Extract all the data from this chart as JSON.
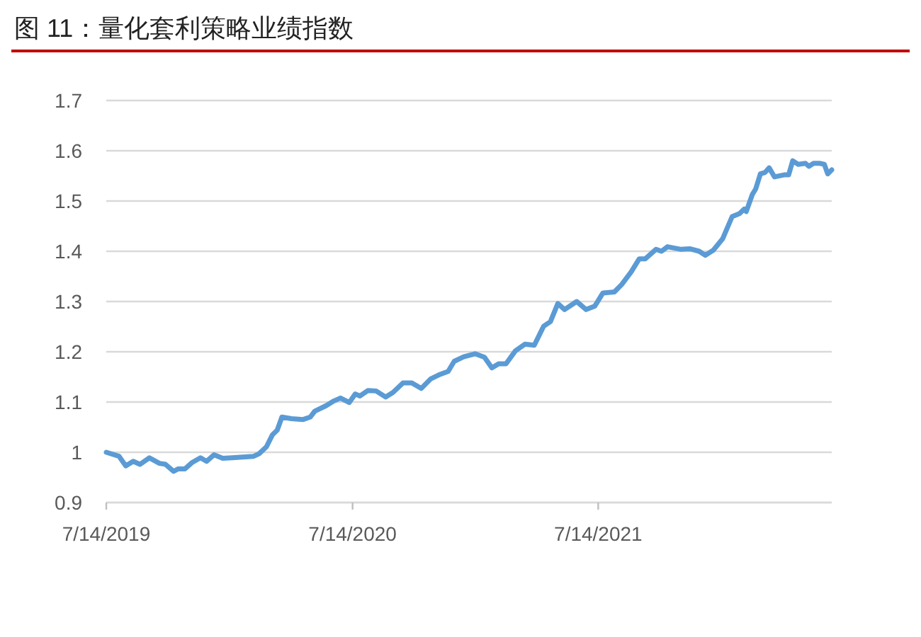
{
  "chart_data": {
    "type": "line",
    "title": "图 11：量化套利策略业绩指数",
    "x": [
      "2019-07-14",
      "2019-08-02",
      "2019-08-12",
      "2019-08-23",
      "2019-09-02",
      "2019-09-16",
      "2019-10-01",
      "2019-10-10",
      "2019-10-22",
      "2019-10-29",
      "2019-11-08",
      "2019-11-19",
      "2019-12-01",
      "2019-12-10",
      "2019-12-21",
      "2020-01-03",
      "2020-01-17",
      "2020-02-18",
      "2020-02-26",
      "2020-03-08",
      "2020-03-17",
      "2020-03-24",
      "2020-03-31",
      "2020-04-14",
      "2020-05-01",
      "2020-05-12",
      "2020-05-19",
      "2020-06-05",
      "2020-06-16",
      "2020-06-26",
      "2020-07-09",
      "2020-07-18",
      "2020-07-25",
      "2020-08-06",
      "2020-08-18",
      "2020-09-01",
      "2020-09-12",
      "2020-09-27",
      "2020-10-10",
      "2020-10-24",
      "2020-11-07",
      "2020-11-21",
      "2020-12-03",
      "2020-12-12",
      "2020-12-26",
      "2021-01-12",
      "2021-01-26",
      "2021-02-06",
      "2021-02-16",
      "2021-02-27",
      "2021-03-13",
      "2021-03-27",
      "2021-04-10",
      "2021-04-24",
      "2021-05-04",
      "2021-05-15",
      "2021-05-25",
      "2021-06-12",
      "2021-06-26",
      "2021-07-09",
      "2021-07-21",
      "2021-08-07",
      "2021-08-18",
      "2021-09-01",
      "2021-09-13",
      "2021-09-22",
      "2021-10-08",
      "2021-10-16",
      "2021-10-25",
      "2021-11-13",
      "2021-11-27",
      "2021-12-11",
      "2021-12-20",
      "2022-01-01",
      "2022-01-15",
      "2022-01-29",
      "2022-02-09",
      "2022-02-16",
      "2022-02-19",
      "2022-02-28",
      "2022-03-05",
      "2022-03-12",
      "2022-03-19",
      "2022-03-25",
      "2022-04-02",
      "2022-04-16",
      "2022-04-23",
      "2022-04-29",
      "2022-05-07",
      "2022-05-18",
      "2022-05-23",
      "2022-05-30",
      "2022-06-08",
      "2022-06-15",
      "2022-06-20",
      "2022-06-26"
    ],
    "series": [
      {
        "color": "#5b9bd5",
        "values": [
          1.0,
          0.992,
          0.973,
          0.982,
          0.976,
          0.989,
          0.978,
          0.976,
          0.962,
          0.967,
          0.967,
          0.98,
          0.989,
          0.982,
          0.995,
          0.988,
          0.989,
          0.992,
          0.997,
          1.011,
          1.035,
          1.044,
          1.07,
          1.067,
          1.065,
          1.07,
          1.082,
          1.093,
          1.102,
          1.108,
          1.099,
          1.116,
          1.112,
          1.123,
          1.122,
          1.11,
          1.119,
          1.138,
          1.138,
          1.127,
          1.146,
          1.155,
          1.161,
          1.181,
          1.19,
          1.196,
          1.189,
          1.168,
          1.176,
          1.176,
          1.202,
          1.215,
          1.213,
          1.251,
          1.26,
          1.296,
          1.284,
          1.3,
          1.284,
          1.291,
          1.317,
          1.319,
          1.334,
          1.359,
          1.385,
          1.385,
          1.404,
          1.4,
          1.409,
          1.404,
          1.405,
          1.4,
          1.392,
          1.402,
          1.425,
          1.469,
          1.475,
          1.484,
          1.479,
          1.513,
          1.524,
          1.554,
          1.557,
          1.566,
          1.548,
          1.552,
          1.552,
          1.58,
          1.573,
          1.575,
          1.569,
          1.575,
          1.575,
          1.573,
          1.554,
          1.562
        ]
      }
    ],
    "xlim": [
      "2019-07-14",
      "2022-06-26"
    ],
    "xticks": [
      {
        "value": "2019-07-14",
        "label": "7/14/2019"
      },
      {
        "value": "2020-07-14",
        "label": "7/14/2020"
      },
      {
        "value": "2021-07-14",
        "label": "7/14/2021"
      }
    ],
    "ylim": [
      0.9,
      1.7
    ],
    "yticks": [
      0.9,
      1,
      1.1,
      1.2,
      1.3,
      1.4,
      1.5,
      1.6,
      1.7
    ],
    "grid": "y",
    "marker": "none",
    "line_style": "solid"
  }
}
